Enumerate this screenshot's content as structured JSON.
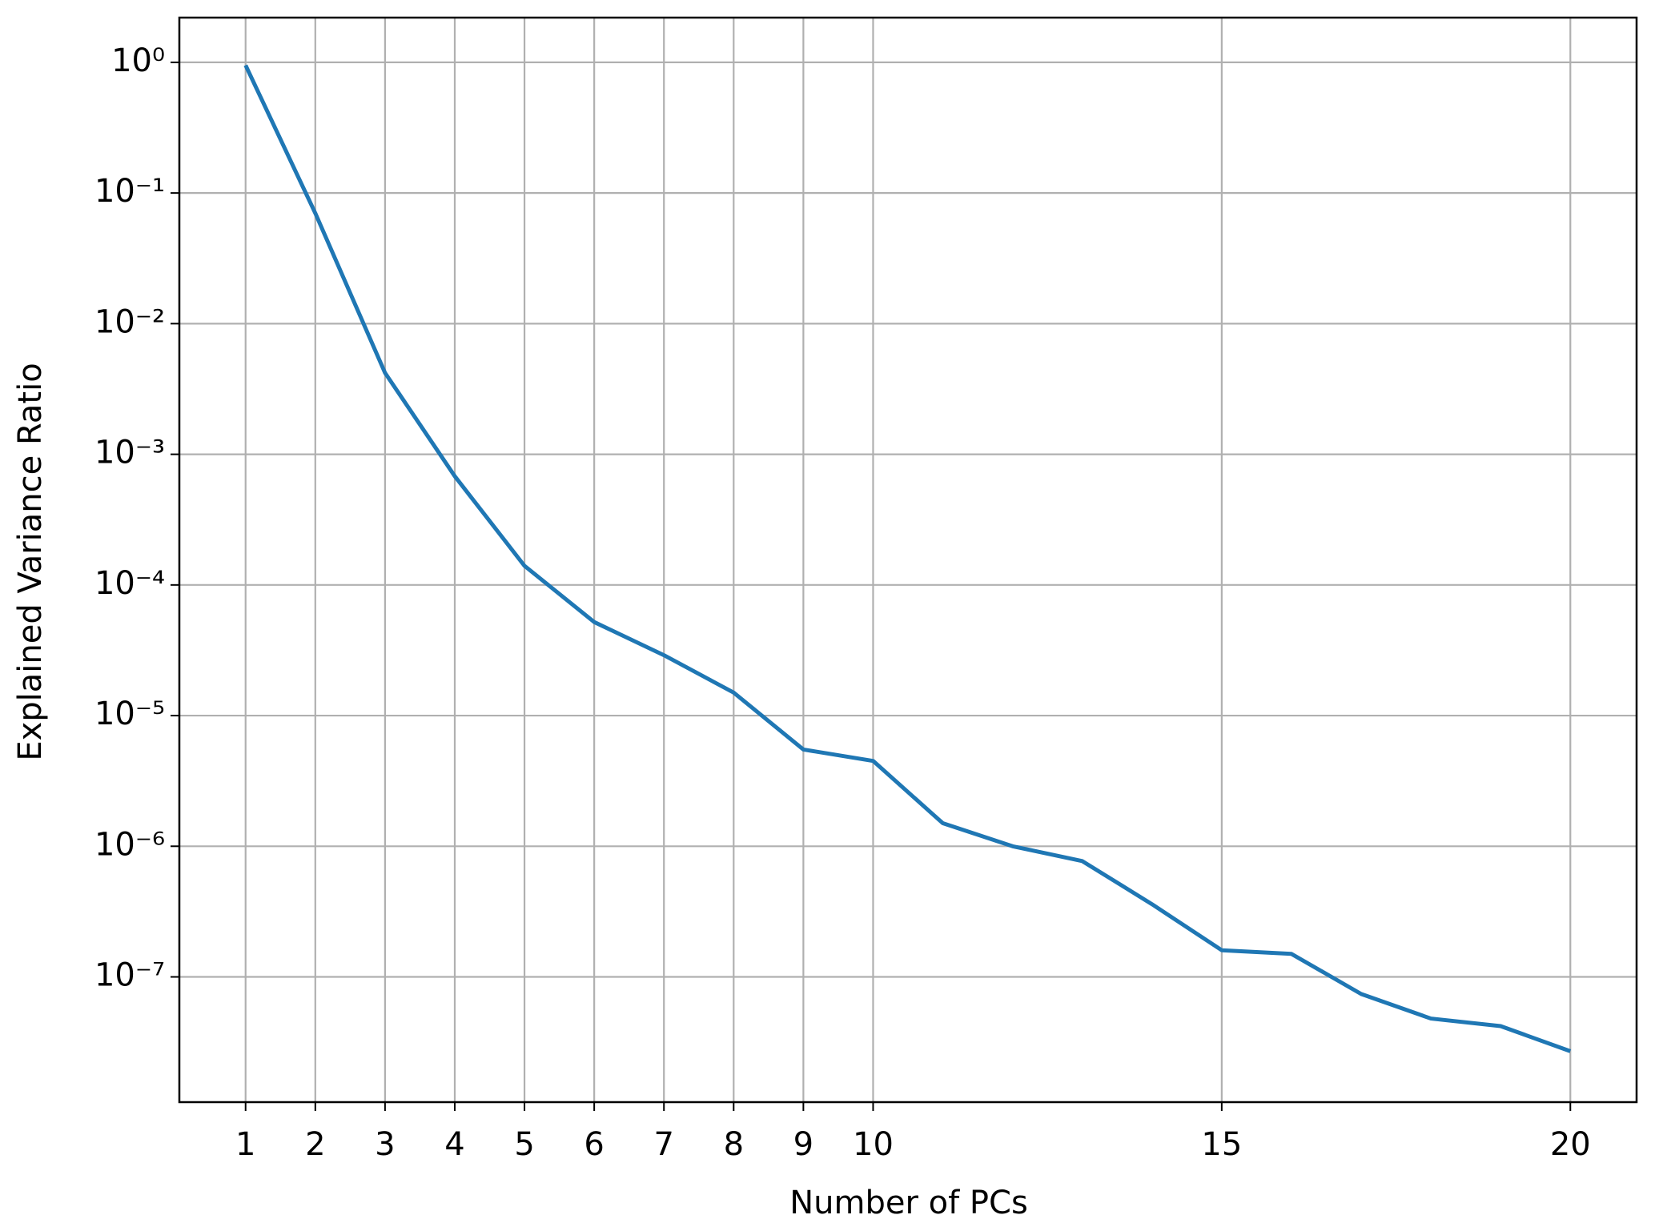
{
  "chart_data": {
    "type": "line",
    "x_label": "Number of PCs",
    "y_label": "Explained Variance Ratio",
    "x": [
      1,
      2,
      3,
      4,
      5,
      6,
      7,
      8,
      9,
      10,
      11,
      12,
      13,
      14,
      15,
      16,
      17,
      18,
      19,
      20
    ],
    "series": [
      {
        "name": "Explained Variance Ratio",
        "color": "#1f77b4",
        "values": [
          0.95,
          0.07,
          0.0042,
          0.00068,
          0.00014,
          5.2e-05,
          2.9e-05,
          1.5e-05,
          5.5e-06,
          4.5e-06,
          1.5e-06,
          1e-06,
          7.7e-07,
          3.6e-07,
          1.6e-07,
          1.5e-07,
          7.4e-08,
          4.8e-08,
          4.2e-08,
          2.7e-08
        ]
      }
    ],
    "xlim": [
      0.05,
      20.95
    ],
    "xticks": [
      1,
      2,
      3,
      4,
      5,
      6,
      7,
      8,
      9,
      10,
      15,
      20
    ],
    "ylim": [
      1.1e-08,
      2.2
    ],
    "yticks": [
      {
        "value": 1,
        "label": "10⁰"
      },
      {
        "value": 0.1,
        "label": "10⁻¹"
      },
      {
        "value": 0.01,
        "label": "10⁻²"
      },
      {
        "value": 0.001,
        "label": "10⁻³"
      },
      {
        "value": 0.0001,
        "label": "10⁻⁴"
      },
      {
        "value": 1e-05,
        "label": "10⁻⁵"
      },
      {
        "value": 1e-06,
        "label": "10⁻⁶"
      },
      {
        "value": 1e-07,
        "label": "10⁻⁷"
      }
    ],
    "log_y": true,
    "grid": true
  }
}
